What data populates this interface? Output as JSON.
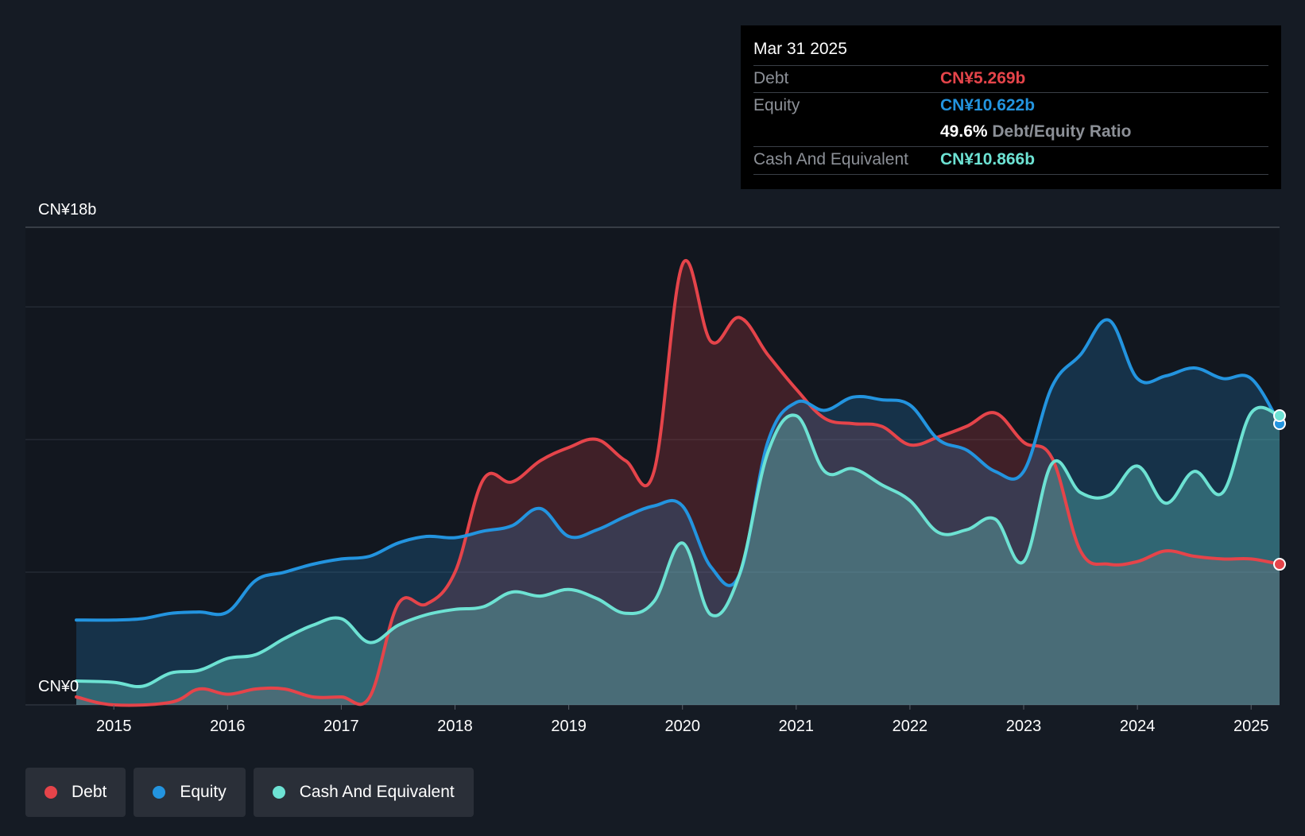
{
  "tooltip": {
    "date": "Mar 31 2025",
    "debt_label": "Debt",
    "debt_value": "CN¥5.269b",
    "equity_label": "Equity",
    "equity_value": "CN¥10.622b",
    "ratio_value": "49.6%",
    "ratio_label": "Debt/Equity Ratio",
    "cash_label": "Cash And Equivalent",
    "cash_value": "CN¥10.866b"
  },
  "legend": {
    "debt": "Debt",
    "equity": "Equity",
    "cash": "Cash And Equivalent"
  },
  "colors": {
    "debt": "#e5444a",
    "equity": "#2394df",
    "cash": "#6de2d3",
    "background": "#151b24"
  },
  "chart_data": {
    "type": "area",
    "title": "",
    "ylabel_top": "CN¥18b",
    "ylabel_bottom": "CN¥0",
    "ylim": [
      0,
      18
    ],
    "xlim": [
      2014.67,
      2025.25
    ],
    "x_ticks": [
      {
        "label": "2015",
        "value": 2015
      },
      {
        "label": "2016",
        "value": 2016
      },
      {
        "label": "2017",
        "value": 2017
      },
      {
        "label": "2018",
        "value": 2018
      },
      {
        "label": "2019",
        "value": 2019
      },
      {
        "label": "2020",
        "value": 2020
      },
      {
        "label": "2021",
        "value": 2021
      },
      {
        "label": "2022",
        "value": 2022
      },
      {
        "label": "2023",
        "value": 2023
      },
      {
        "label": "2024",
        "value": 2024
      },
      {
        "label": "2025",
        "value": 2025
      }
    ],
    "gridlines": [
      0,
      5,
      10,
      15,
      18
    ],
    "series": [
      {
        "name": "Debt",
        "key": "debt",
        "points": [
          [
            2014.67,
            0.3
          ],
          [
            2015.0,
            0.0
          ],
          [
            2015.5,
            0.1
          ],
          [
            2015.75,
            0.6
          ],
          [
            2016.0,
            0.4
          ],
          [
            2016.25,
            0.6
          ],
          [
            2016.5,
            0.6
          ],
          [
            2016.75,
            0.3
          ],
          [
            2017.0,
            0.3
          ],
          [
            2017.25,
            0.3
          ],
          [
            2017.5,
            3.8
          ],
          [
            2017.75,
            3.8
          ],
          [
            2018.0,
            5.0
          ],
          [
            2018.25,
            8.5
          ],
          [
            2018.5,
            8.4
          ],
          [
            2018.75,
            9.2
          ],
          [
            2019.0,
            9.7
          ],
          [
            2019.25,
            10.0
          ],
          [
            2019.5,
            9.2
          ],
          [
            2019.75,
            8.8
          ],
          [
            2020.0,
            16.6
          ],
          [
            2020.25,
            13.7
          ],
          [
            2020.5,
            14.6
          ],
          [
            2020.75,
            13.2
          ],
          [
            2021.0,
            11.9
          ],
          [
            2021.25,
            10.8
          ],
          [
            2021.5,
            10.6
          ],
          [
            2021.75,
            10.5
          ],
          [
            2022.0,
            9.8
          ],
          [
            2022.25,
            10.1
          ],
          [
            2022.5,
            10.5
          ],
          [
            2022.75,
            11.0
          ],
          [
            2023.0,
            9.9
          ],
          [
            2023.25,
            9.3
          ],
          [
            2023.5,
            5.8
          ],
          [
            2023.75,
            5.3
          ],
          [
            2024.0,
            5.4
          ],
          [
            2024.25,
            5.8
          ],
          [
            2024.5,
            5.6
          ],
          [
            2024.75,
            5.5
          ],
          [
            2025.0,
            5.5
          ],
          [
            2025.25,
            5.3
          ]
        ]
      },
      {
        "name": "Equity",
        "key": "equity",
        "points": [
          [
            2014.67,
            3.2
          ],
          [
            2015.0,
            3.2
          ],
          [
            2015.25,
            3.25
          ],
          [
            2015.5,
            3.45
          ],
          [
            2015.75,
            3.5
          ],
          [
            2016.0,
            3.5
          ],
          [
            2016.25,
            4.7
          ],
          [
            2016.5,
            5.0
          ],
          [
            2016.75,
            5.3
          ],
          [
            2017.0,
            5.5
          ],
          [
            2017.25,
            5.6
          ],
          [
            2017.5,
            6.1
          ],
          [
            2017.75,
            6.35
          ],
          [
            2018.0,
            6.3
          ],
          [
            2018.25,
            6.55
          ],
          [
            2018.5,
            6.75
          ],
          [
            2018.75,
            7.4
          ],
          [
            2019.0,
            6.35
          ],
          [
            2019.25,
            6.6
          ],
          [
            2019.5,
            7.1
          ],
          [
            2019.75,
            7.5
          ],
          [
            2020.0,
            7.5
          ],
          [
            2020.25,
            5.2
          ],
          [
            2020.5,
            4.9
          ],
          [
            2020.75,
            9.9
          ],
          [
            2021.0,
            11.4
          ],
          [
            2021.25,
            11.1
          ],
          [
            2021.5,
            11.6
          ],
          [
            2021.75,
            11.5
          ],
          [
            2022.0,
            11.3
          ],
          [
            2022.25,
            10.0
          ],
          [
            2022.5,
            9.6
          ],
          [
            2022.75,
            8.8
          ],
          [
            2023.0,
            8.8
          ],
          [
            2023.25,
            12.0
          ],
          [
            2023.5,
            13.2
          ],
          [
            2023.75,
            14.5
          ],
          [
            2024.0,
            12.3
          ],
          [
            2024.25,
            12.4
          ],
          [
            2024.5,
            12.7
          ],
          [
            2024.75,
            12.3
          ],
          [
            2025.0,
            12.3
          ],
          [
            2025.25,
            10.6
          ]
        ]
      },
      {
        "name": "Cash And Equivalent",
        "key": "cash",
        "points": [
          [
            2014.67,
            0.9
          ],
          [
            2015.0,
            0.85
          ],
          [
            2015.25,
            0.7
          ],
          [
            2015.5,
            1.2
          ],
          [
            2015.75,
            1.3
          ],
          [
            2016.0,
            1.75
          ],
          [
            2016.25,
            1.9
          ],
          [
            2016.5,
            2.5
          ],
          [
            2016.75,
            3.0
          ],
          [
            2017.0,
            3.25
          ],
          [
            2017.25,
            2.35
          ],
          [
            2017.5,
            3.0
          ],
          [
            2017.75,
            3.4
          ],
          [
            2018.0,
            3.6
          ],
          [
            2018.25,
            3.7
          ],
          [
            2018.5,
            4.25
          ],
          [
            2018.75,
            4.1
          ],
          [
            2019.0,
            4.35
          ],
          [
            2019.25,
            4.0
          ],
          [
            2019.5,
            3.45
          ],
          [
            2019.75,
            3.9
          ],
          [
            2020.0,
            6.1
          ],
          [
            2020.25,
            3.4
          ],
          [
            2020.5,
            4.9
          ],
          [
            2020.75,
            9.5
          ],
          [
            2021.0,
            10.9
          ],
          [
            2021.25,
            8.8
          ],
          [
            2021.5,
            8.9
          ],
          [
            2021.75,
            8.3
          ],
          [
            2022.0,
            7.7
          ],
          [
            2022.25,
            6.5
          ],
          [
            2022.5,
            6.6
          ],
          [
            2022.75,
            7.0
          ],
          [
            2023.0,
            5.4
          ],
          [
            2023.25,
            9.1
          ],
          [
            2023.5,
            8.0
          ],
          [
            2023.75,
            7.9
          ],
          [
            2024.0,
            9.0
          ],
          [
            2024.25,
            7.6
          ],
          [
            2024.5,
            8.8
          ],
          [
            2024.75,
            8.0
          ],
          [
            2025.0,
            11.0
          ],
          [
            2025.25,
            10.9
          ]
        ]
      }
    ]
  }
}
